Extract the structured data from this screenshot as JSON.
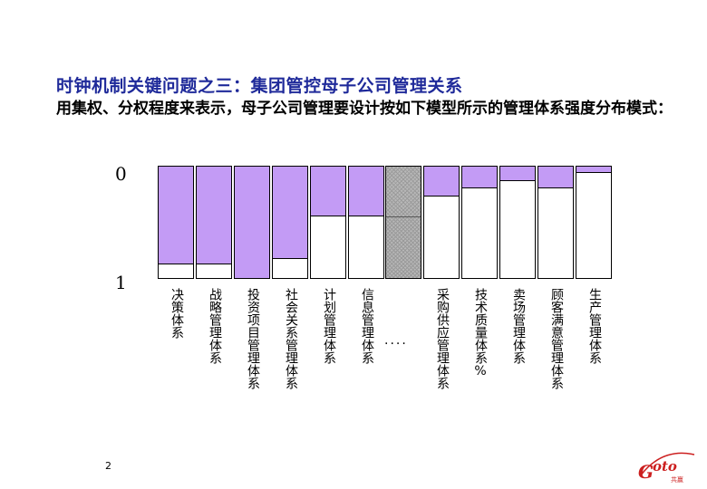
{
  "slide": {
    "title": "时钟机制关键问题之三：集团管控母子公司管理关系",
    "subtitle": "用集权、分权程度来表示，母子公司管理要设计按如下模型所示的管理体系强度分布模式：",
    "page_number": "2",
    "ellipsis": "....",
    "logo_text": "GOTO",
    "logo_small": "共赢"
  },
  "colors": {
    "fill": "#c39bf5",
    "title": "#1f2a9a",
    "hatch": "#b8b8b8",
    "logo": "#cc1f1f"
  },
  "chart_data": {
    "type": "bar",
    "axis_top": "0",
    "axis_bottom": "1",
    "ylim": [
      0,
      1
    ],
    "categories": [
      "决策体系",
      "战略管理体系",
      "投资项目管理体系",
      "社会关系管理体系",
      "计划管理体系",
      "信息管理体系",
      "",
      "采购供应管理体系",
      "技术质量体系%",
      "卖场管理体系",
      "顾客满意管理体系",
      "生产管理体系"
    ],
    "values": [
      0.87,
      0.87,
      1.0,
      0.82,
      0.44,
      0.44,
      null,
      0.26,
      0.19,
      0.12,
      0.19,
      0.05
    ],
    "placeholder_index": 6
  }
}
